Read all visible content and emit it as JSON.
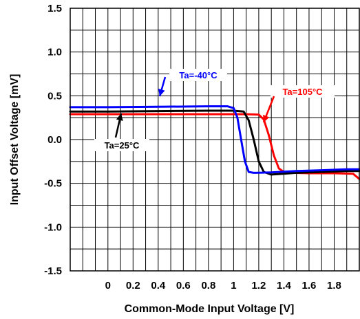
{
  "chart_data": {
    "type": "line",
    "xlabel": "Common-Mode Input Voltage [V]",
    "ylabel": "Input Offset Voltage [mV]",
    "xlim": [
      -0.3,
      2.0
    ],
    "ylim": [
      -1.5,
      1.5
    ],
    "x_ticks": [
      0,
      0.2,
      0.4,
      0.6,
      0.8,
      1,
      1.2,
      1.4,
      1.6,
      1.8
    ],
    "x_tick_labels": [
      "0",
      "0.2",
      "0.4",
      "0.6",
      "0.8",
      "1",
      "1.2",
      "1.4",
      "1.6",
      "1.8"
    ],
    "y_ticks": [
      1.5,
      1.0,
      0.5,
      0.0,
      -0.5,
      -1.0,
      -1.5
    ],
    "y_tick_labels": [
      "1.5",
      "1.0",
      "0.5",
      "0.0",
      "-0.5",
      "-1.0",
      "-1.5"
    ],
    "grid": true,
    "series": [
      {
        "name": "Ta=105°C",
        "color": "#ff0000",
        "x": [
          -0.3,
          0.0,
          0.4,
          0.8,
          1.1,
          1.2,
          1.24,
          1.28,
          1.32,
          1.36,
          1.4,
          1.46,
          1.6,
          1.8,
          1.95,
          2.0
        ],
        "y": [
          0.29,
          0.29,
          0.29,
          0.29,
          0.29,
          0.285,
          0.23,
          0.05,
          -0.18,
          -0.33,
          -0.37,
          -0.38,
          -0.385,
          -0.385,
          -0.39,
          -0.45
        ]
      },
      {
        "name": "Ta=25°C",
        "color": "#000000",
        "x": [
          -0.3,
          0.0,
          0.4,
          0.8,
          1.0,
          1.08,
          1.12,
          1.16,
          1.2,
          1.24,
          1.3,
          1.5,
          1.7,
          1.9,
          2.0
        ],
        "y": [
          0.32,
          0.32,
          0.325,
          0.33,
          0.33,
          0.32,
          0.22,
          0.0,
          -0.25,
          -0.37,
          -0.4,
          -0.38,
          -0.37,
          -0.36,
          -0.36
        ]
      },
      {
        "name": "Ta=-40°C",
        "color": "#0000ff",
        "x": [
          -0.3,
          0.0,
          0.4,
          0.8,
          0.95,
          1.0,
          1.03,
          1.06,
          1.09,
          1.12,
          1.16,
          1.3,
          1.5,
          1.7,
          1.9,
          2.0
        ],
        "y": [
          0.37,
          0.37,
          0.375,
          0.38,
          0.38,
          0.36,
          0.25,
          0.0,
          -0.25,
          -0.37,
          -0.38,
          -0.375,
          -0.36,
          -0.35,
          -0.34,
          -0.34
        ]
      }
    ],
    "annotations": [
      {
        "text": "Ta=-40°C",
        "color": "#0000ff"
      },
      {
        "text": "Ta=105°C",
        "color": "#ff0000"
      },
      {
        "text": "Ta=25°C",
        "color": "#000000"
      }
    ]
  }
}
